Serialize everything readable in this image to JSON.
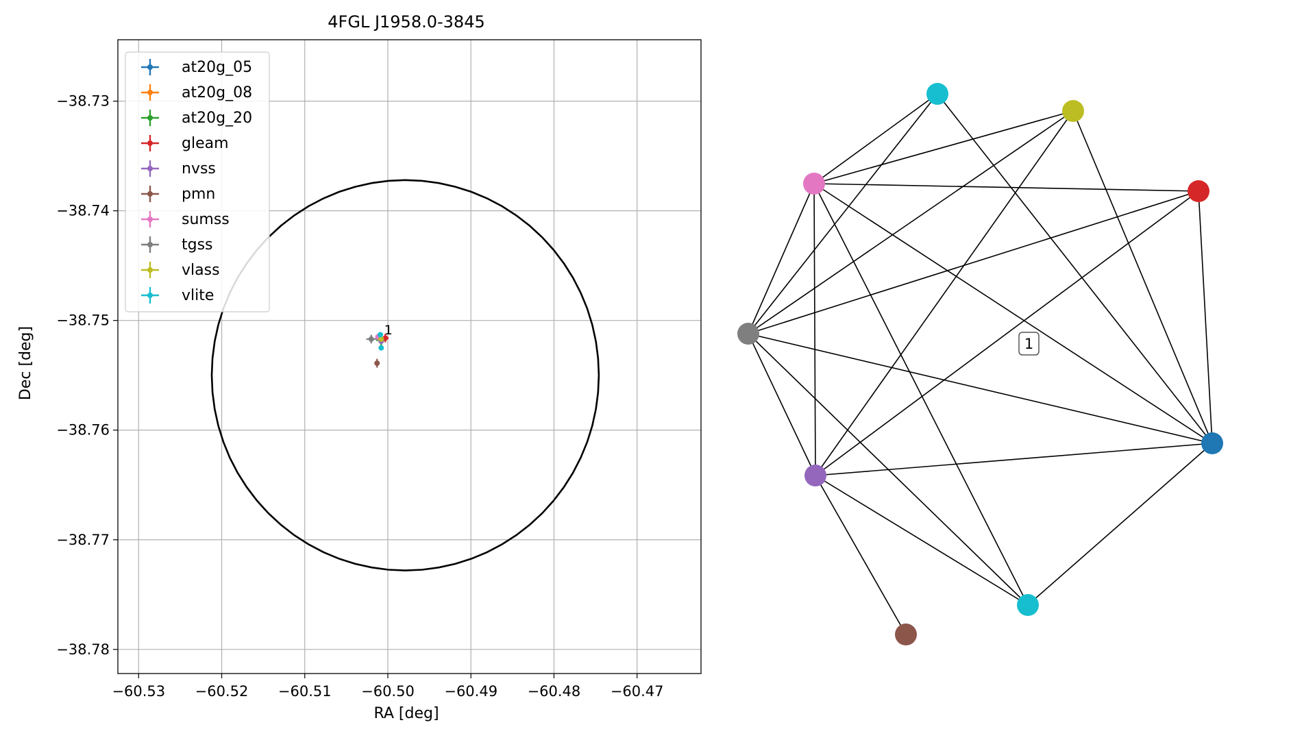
{
  "chart_data": [
    {
      "type": "scatter",
      "title": "4FGL J1958.0-3845",
      "xlabel": "RA [deg]",
      "ylabel": "Dec [deg]",
      "xlim": [
        -60.5325,
        -60.4623
      ],
      "ylim": [
        -38.7822,
        -38.7244
      ],
      "xticks": [
        -60.53,
        -60.52,
        -60.51,
        -60.5,
        -60.49,
        -60.48,
        -60.47
      ],
      "xtick_labels": [
        "−60.53",
        "−60.52",
        "−60.51",
        "−60.50",
        "−60.49",
        "−60.48",
        "−60.47"
      ],
      "yticks": [
        -38.73,
        -38.74,
        -38.75,
        -38.76,
        -38.77,
        -38.78
      ],
      "ytick_labels": [
        "−38.73",
        "−38.74",
        "−38.75",
        "−38.76",
        "−38.77",
        "−38.78"
      ],
      "grid": true,
      "legend_placement": "upper-left",
      "ellipse": {
        "center_ra": -60.4979,
        "center_dec": -38.755,
        "semi_ra": 0.0233,
        "semi_dec": 0.0178,
        "color": "#000000"
      },
      "annotations": [
        {
          "text": "1",
          "ra": -60.5006,
          "dec": -38.7514
        }
      ],
      "series": [
        {
          "name": "at20g_05",
          "color": "#1f77b4",
          "ra": -60.5008,
          "dec": -38.7518,
          "ra_err": 0.0006,
          "dec_err": 0.0006
        },
        {
          "name": "at20g_08",
          "color": "#ff7f0e",
          "ra": -60.5008,
          "dec": -38.7518,
          "ra_err": 0.0006,
          "dec_err": 0.0006
        },
        {
          "name": "at20g_20",
          "color": "#2ca02c",
          "ra": -60.5008,
          "dec": -38.7518,
          "ra_err": 0.0006,
          "dec_err": 0.0006
        },
        {
          "name": "gleam",
          "color": "#d62728",
          "ra": -60.5003,
          "dec": -38.7516,
          "ra_err": 0.0004,
          "dec_err": 0.0004
        },
        {
          "name": "nvss",
          "color": "#9467bd",
          "ra": -60.5008,
          "dec": -38.7519,
          "ra_err": 0.0002,
          "dec_err": 0.0002
        },
        {
          "name": "pmn",
          "color": "#8c564b",
          "ra": -60.5013,
          "dec": -38.7539,
          "ra_err": 0.0002,
          "dec_err": 0.0004
        },
        {
          "name": "sumss",
          "color": "#e377c2",
          "ra": -60.5012,
          "dec": -38.7515,
          "ra_err": 0.0003,
          "dec_err": 0.0003
        },
        {
          "name": "tgss",
          "color": "#7f7f7f",
          "ra": -60.502,
          "dec": -38.7517,
          "ra_err": 0.0006,
          "dec_err": 0.0004
        },
        {
          "name": "vlass",
          "color": "#bcbd22",
          "ra": -60.5008,
          "dec": -38.7517,
          "ra_err": 0.0001,
          "dec_err": 0.0001
        },
        {
          "name": "vlite",
          "color": "#17becf",
          "ra": -60.5009,
          "dec": -38.7513,
          "ra_err": 0.0002,
          "dec_err": 0.0002
        },
        {
          "name": "vlite",
          "color": "#17becf",
          "ra": -60.5008,
          "dec": -38.7525,
          "ra_err": 0.0002,
          "dec_err": 0.0002
        }
      ]
    },
    {
      "type": "network",
      "nodes": [
        {
          "id": "cyan_top",
          "color": "#17becf"
        },
        {
          "id": "olive",
          "color": "#bcbd22"
        },
        {
          "id": "pink",
          "color": "#e377c2"
        },
        {
          "id": "red",
          "color": "#d62728"
        },
        {
          "id": "gray",
          "color": "#7f7f7f"
        },
        {
          "id": "blue",
          "color": "#1f77b4"
        },
        {
          "id": "purple",
          "color": "#9467bd"
        },
        {
          "id": "cyan_bottom",
          "color": "#17becf"
        },
        {
          "id": "brown",
          "color": "#8c564b"
        }
      ],
      "edges": [
        [
          "cyan_top",
          "pink"
        ],
        [
          "cyan_top",
          "gray"
        ],
        [
          "cyan_top",
          "blue"
        ],
        [
          "olive",
          "pink"
        ],
        [
          "olive",
          "gray"
        ],
        [
          "olive",
          "purple"
        ],
        [
          "olive",
          "blue"
        ],
        [
          "pink",
          "red"
        ],
        [
          "pink",
          "gray"
        ],
        [
          "pink",
          "purple"
        ],
        [
          "pink",
          "blue"
        ],
        [
          "pink",
          "cyan_bottom"
        ],
        [
          "red",
          "gray"
        ],
        [
          "red",
          "purple"
        ],
        [
          "red",
          "blue"
        ],
        [
          "gray",
          "blue"
        ],
        [
          "gray",
          "purple"
        ],
        [
          "gray",
          "cyan_bottom"
        ],
        [
          "purple",
          "blue"
        ],
        [
          "purple",
          "cyan_bottom"
        ],
        [
          "purple",
          "brown"
        ],
        [
          "blue",
          "cyan_bottom"
        ]
      ],
      "label": {
        "text": "1"
      }
    }
  ]
}
